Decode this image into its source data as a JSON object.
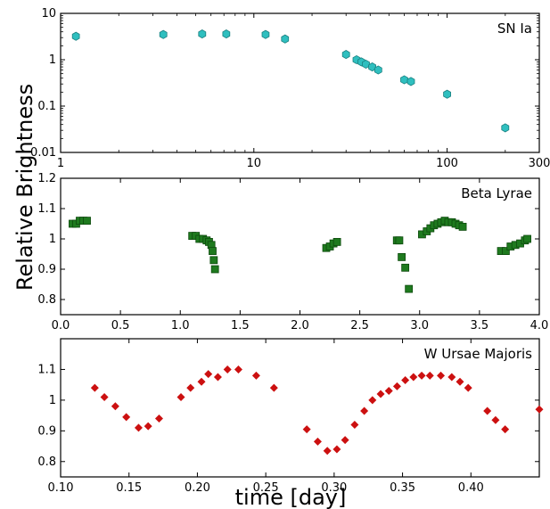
{
  "figure": {
    "ylabel": "Relative Brightness",
    "xlabel": "time [day]"
  },
  "chart_data": [
    {
      "type": "scatter",
      "label": "SN Ia",
      "xscale": "log",
      "yscale": "log",
      "xlim": [
        1,
        300
      ],
      "ylim": [
        0.01,
        10
      ],
      "x_ticks": [
        1,
        10,
        100,
        300
      ],
      "x_tick_labels": [
        "1",
        "10",
        "100",
        "300"
      ],
      "y_ticks": [
        0.01,
        0.1,
        1,
        10
      ],
      "y_tick_labels": [
        "0.01",
        "0.1",
        "1",
        "10"
      ],
      "marker": "hexagon",
      "color": "#2fbfbf",
      "x": [
        1.2,
        3.4,
        5.4,
        7.2,
        11.5,
        14.5,
        30,
        34,
        36,
        38,
        41,
        44,
        60,
        65,
        100,
        200
      ],
      "y": [
        3.2,
        3.5,
        3.6,
        3.6,
        3.5,
        2.8,
        1.3,
        1.0,
        0.9,
        0.8,
        0.7,
        0.6,
        0.37,
        0.34,
        0.18,
        0.034
      ]
    },
    {
      "type": "scatter",
      "label": "Beta Lyrae",
      "xscale": "linear",
      "xlim": [
        0,
        4.0
      ],
      "ylim": [
        0.75,
        1.2
      ],
      "x_ticks": [
        0,
        0.5,
        1.0,
        1.5,
        2.0,
        2.5,
        3.0,
        3.5,
        4.0
      ],
      "x_tick_labels": [
        "0.0",
        "0.5",
        "1.0",
        "1.5",
        "2.0",
        "2.5",
        "3.0",
        "3.5",
        "4.0"
      ],
      "y_ticks": [
        0.8,
        0.9,
        1.0,
        1.1,
        1.2
      ],
      "y_tick_labels": [
        "0.8",
        "0.9",
        "1",
        "1.1",
        "1.2"
      ],
      "marker": "square",
      "color": "#1e7a1e",
      "x": [
        0.1,
        0.13,
        0.16,
        0.19,
        0.22,
        1.1,
        1.13,
        1.16,
        1.19,
        1.22,
        1.24,
        1.26,
        1.27,
        1.28,
        1.29,
        2.22,
        2.25,
        2.28,
        2.31,
        2.81,
        2.83,
        2.85,
        2.88,
        2.91,
        3.02,
        3.06,
        3.09,
        3.12,
        3.15,
        3.18,
        3.21,
        3.24,
        3.27,
        3.3,
        3.33,
        3.36,
        3.68,
        3.72,
        3.76,
        3.8,
        3.84,
        3.88,
        3.9
      ],
      "y": [
        1.05,
        1.05,
        1.06,
        1.06,
        1.06,
        1.01,
        1.01,
        1.0,
        1.0,
        0.995,
        0.99,
        0.98,
        0.96,
        0.93,
        0.9,
        0.97,
        0.975,
        0.985,
        0.99,
        0.995,
        0.995,
        0.94,
        0.905,
        0.835,
        1.015,
        1.025,
        1.035,
        1.045,
        1.05,
        1.055,
        1.06,
        1.055,
        1.055,
        1.05,
        1.045,
        1.04,
        0.96,
        0.96,
        0.975,
        0.98,
        0.985,
        0.995,
        1.0
      ]
    },
    {
      "type": "scatter",
      "label": "W Ursae Majoris",
      "xscale": "linear",
      "xlim": [
        0.1,
        0.45
      ],
      "ylim": [
        0.75,
        1.2
      ],
      "x_ticks": [
        0.1,
        0.15,
        0.2,
        0.25,
        0.3,
        0.35,
        0.4
      ],
      "x_tick_labels": [
        "0.10",
        "0.15",
        "0.20",
        "0.25",
        "0.30",
        "0.35",
        "0.40"
      ],
      "y_ticks": [
        0.8,
        0.9,
        1.0,
        1.1
      ],
      "y_tick_labels": [
        "0.8",
        "0.9",
        "1",
        "1.1"
      ],
      "marker": "diamond",
      "color": "#cc1010",
      "x": [
        0.125,
        0.132,
        0.14,
        0.148,
        0.157,
        0.164,
        0.172,
        0.188,
        0.195,
        0.203,
        0.208,
        0.215,
        0.222,
        0.23,
        0.243,
        0.256,
        0.28,
        0.288,
        0.295,
        0.302,
        0.308,
        0.315,
        0.322,
        0.328,
        0.334,
        0.34,
        0.346,
        0.352,
        0.358,
        0.364,
        0.37,
        0.378,
        0.386,
        0.392,
        0.398,
        0.412,
        0.418,
        0.425,
        0.45
      ],
      "y": [
        1.04,
        1.01,
        0.98,
        0.945,
        0.91,
        0.915,
        0.94,
        1.01,
        1.04,
        1.06,
        1.085,
        1.075,
        1.1,
        1.1,
        1.08,
        1.04,
        0.905,
        0.865,
        0.835,
        0.84,
        0.87,
        0.92,
        0.965,
        1.0,
        1.02,
        1.03,
        1.045,
        1.065,
        1.075,
        1.08,
        1.08,
        1.08,
        1.075,
        1.06,
        1.04,
        0.965,
        0.935,
        0.905,
        0.97
      ]
    }
  ]
}
